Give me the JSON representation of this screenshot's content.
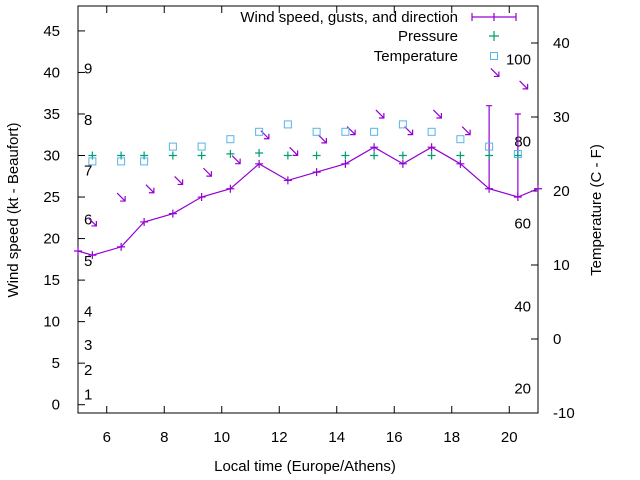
{
  "chart_data": {
    "type": "line",
    "xlabel": "Local time (Europe/Athens)",
    "ylabel": "Wind speed (kt - Beaufort)",
    "y2label": "Temperature (C - F)",
    "xlim": [
      5,
      21
    ],
    "ylim": [
      -1,
      48
    ],
    "y2lim": [
      -10,
      45
    ],
    "x_ticks": [
      6,
      8,
      10,
      12,
      14,
      16,
      18,
      20
    ],
    "y_ticks": [
      0,
      5,
      10,
      15,
      20,
      25,
      30,
      35,
      40,
      45
    ],
    "y2_ticks": [
      -10,
      0,
      10,
      20,
      30,
      40
    ],
    "beaufort_labels": [
      {
        "label": "1",
        "y": 1.2
      },
      {
        "label": "2",
        "y": 4.2
      },
      {
        "label": "3",
        "y": 7.2
      },
      {
        "label": "4",
        "y": 11.2
      },
      {
        "label": "5",
        "y": 17.3
      },
      {
        "label": "6",
        "y": 22.3
      },
      {
        "label": "7",
        "y": 28.2
      },
      {
        "label": "8",
        "y": 34.3
      },
      {
        "label": "9",
        "y": 40.5
      }
    ],
    "fahrenheit_labels": [
      {
        "label": "20",
        "y": -6.7
      },
      {
        "label": "40",
        "y": 4.4
      },
      {
        "label": "60",
        "y": 15.6
      },
      {
        "label": "80",
        "y": 26.7
      },
      {
        "label": "100",
        "y": 37.8
      }
    ],
    "grid": false,
    "legend_position": "top-right",
    "series": [
      {
        "name": "Wind speed, gusts, and direction",
        "color": "#9400d3",
        "x": [
          5.0,
          5.5,
          6.5,
          7.3,
          8.3,
          9.3,
          10.3,
          11.3,
          12.3,
          13.3,
          14.3,
          15.3,
          16.3,
          17.3,
          18.3,
          19.3,
          20.3,
          21.0
        ],
        "y": [
          18.5,
          18,
          19,
          22,
          23,
          25,
          26,
          29,
          27,
          28,
          29,
          31,
          29,
          31,
          29,
          26,
          25,
          26
        ],
        "gust_x": [
          19.3,
          20.3
        ],
        "gust_y": [
          36,
          35
        ],
        "direction_x": [
          5.5,
          6.5,
          7.5,
          8.5,
          9.5,
          10.5,
          11.5,
          12.5,
          13.5,
          14.5,
          15.5,
          16.5,
          17.5,
          18.5,
          19.5,
          20.5
        ],
        "direction_y": [
          22,
          25,
          26,
          27,
          28,
          29.5,
          32.5,
          30.5,
          32,
          33,
          35,
          33,
          35,
          33,
          40,
          38.5
        ]
      },
      {
        "name": "Pressure",
        "color": "#009e73",
        "marker": "plus",
        "x": [
          5.5,
          6.5,
          7.3,
          8.3,
          9.3,
          10.3,
          11.3,
          12.3,
          13.3,
          14.3,
          15.3,
          16.3,
          17.3,
          18.3,
          19.3,
          20.3
        ],
        "y": [
          30,
          30,
          30,
          30,
          30,
          30.2,
          30.3,
          30,
          30,
          30,
          30,
          30,
          30,
          30,
          30,
          30
        ]
      },
      {
        "name": "Temperature",
        "color": "#56b4e9",
        "marker": "square",
        "axis": "y2",
        "x": [
          5.5,
          6.5,
          7.3,
          8.3,
          9.3,
          10.3,
          11.3,
          12.3,
          13.3,
          14.3,
          15.3,
          16.3,
          17.3,
          18.3,
          19.3,
          20.3
        ],
        "y": [
          24,
          24,
          24,
          26,
          26,
          27,
          28,
          29,
          28,
          28,
          28,
          29,
          28,
          27,
          26,
          25
        ]
      }
    ]
  }
}
